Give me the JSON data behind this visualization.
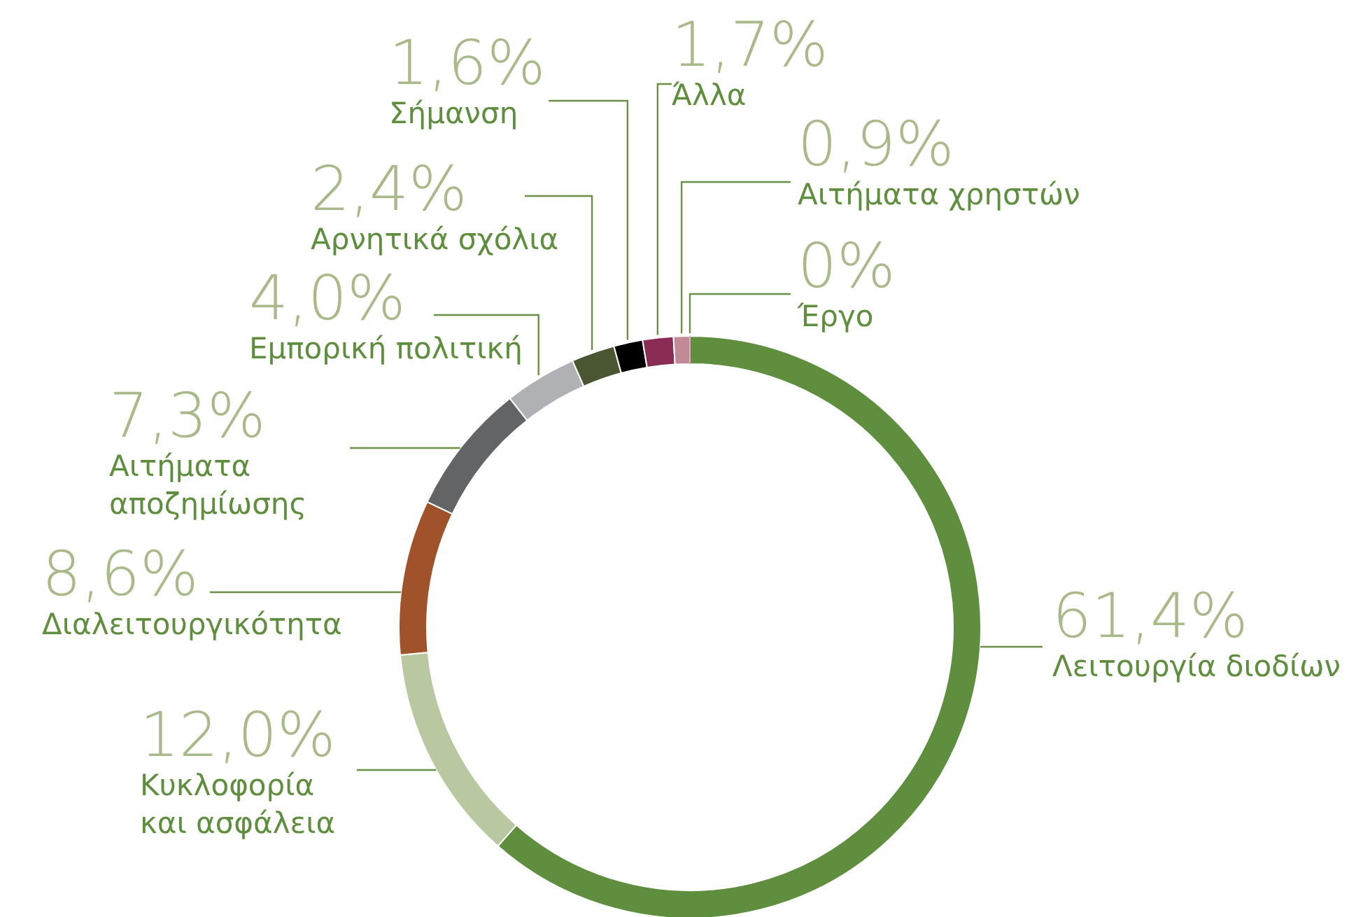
{
  "chart_data": {
    "type": "donut",
    "categories": [
      "Λειτουργία διοδίων",
      "Κυκλοφορία και ασφάλεια",
      "Διαλειτουργικότητα",
      "Αιτήματα αποζημίωσης",
      "Εμπορική πολιτική",
      "Αρνητικά σχόλια",
      "Σήμανση",
      "Άλλα",
      "Αιτήματα χρηστών",
      "Έργο"
    ],
    "values": [
      61.4,
      12.0,
      8.6,
      7.3,
      4.0,
      2.4,
      1.6,
      1.7,
      0.9,
      0
    ],
    "value_labels": [
      "61,4%",
      "12,0%",
      "8,6%",
      "7,3%",
      "4,0%",
      "2,4%",
      "1,6%",
      "1,7%",
      "0,9%",
      "0%"
    ],
    "colors": [
      "#5f8f3e",
      "#b9c8a0",
      "#a0522a",
      "#636466",
      "#b0b1b4",
      "#4a5532",
      "#000000",
      "#8b2c55",
      "#c08a96",
      "#d9b0bc"
    ]
  }
}
